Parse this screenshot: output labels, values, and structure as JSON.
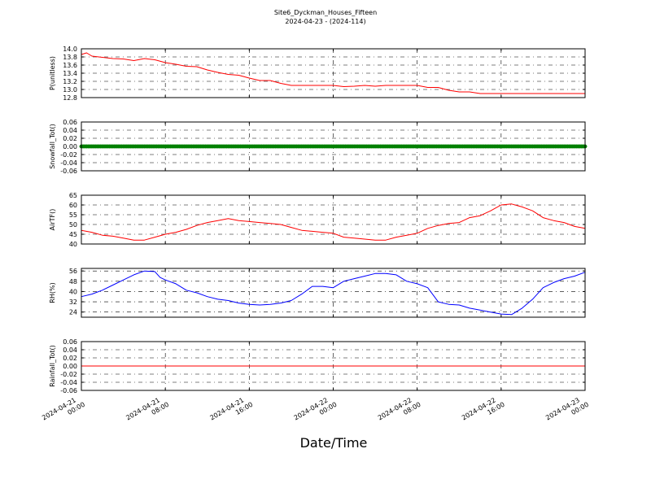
{
  "figure": {
    "title_line1": "Site6_Dyckman_Houses_Fifteen",
    "title_line2": "2024-04-23 - (2024-114)",
    "xlabel": "Date/Time",
    "xticks": [
      {
        "x": "2024-04-21 00:00",
        "l1": "2024-04-21",
        "l2": "00:00"
      },
      {
        "x": "2024-04-21 08:00",
        "l1": "2024-04-21",
        "l2": "08:00"
      },
      {
        "x": "2024-04-21 16:00",
        "l1": "2024-04-21",
        "l2": "16:00"
      },
      {
        "x": "2024-04-22 00:00",
        "l1": "2024-04-22",
        "l2": "00:00"
      },
      {
        "x": "2024-04-22 08:00",
        "l1": "2024-04-22",
        "l2": "08:00"
      },
      {
        "x": "2024-04-22 16:00",
        "l1": "2024-04-22",
        "l2": "16:00"
      },
      {
        "x": "2024-04-23 00:00",
        "l1": "2024-04-23",
        "l2": "00:00"
      }
    ]
  },
  "chart_data": [
    {
      "type": "line",
      "ylabel": "P(unitless)",
      "ylim": [
        12.8,
        14.0
      ],
      "yticks": [
        "12.8",
        "13.0",
        "13.2",
        "13.4",
        "13.6",
        "13.8",
        "14.0"
      ],
      "xlim": [
        "2024-04-21 00:00",
        "2024-04-23 00:00"
      ],
      "grid": true,
      "series": [
        {
          "color": "#ff0000",
          "points": [
            [
              "2024-04-21 00:00",
              13.86
            ],
            [
              "2024-04-21 00:30",
              13.9
            ],
            [
              "2024-04-21 01:00",
              13.82
            ],
            [
              "2024-04-21 02:00",
              13.79
            ],
            [
              "2024-04-21 03:00",
              13.76
            ],
            [
              "2024-04-21 04:00",
              13.75
            ],
            [
              "2024-04-21 05:00",
              13.71
            ],
            [
              "2024-04-21 06:00",
              13.76
            ],
            [
              "2024-04-21 07:00",
              13.73
            ],
            [
              "2024-04-21 08:00",
              13.66
            ],
            [
              "2024-04-21 09:00",
              13.62
            ],
            [
              "2024-04-21 10:00",
              13.57
            ],
            [
              "2024-04-21 11:00",
              13.56
            ],
            [
              "2024-04-21 12:00",
              13.48
            ],
            [
              "2024-04-21 13:00",
              13.42
            ],
            [
              "2024-04-21 14:00",
              13.37
            ],
            [
              "2024-04-21 15:00",
              13.35
            ],
            [
              "2024-04-21 16:00",
              13.28
            ],
            [
              "2024-04-21 17:00",
              13.22
            ],
            [
              "2024-04-21 18:00",
              13.22
            ],
            [
              "2024-04-21 19:00",
              13.15
            ],
            [
              "2024-04-21 20:00",
              13.1
            ],
            [
              "2024-04-21 22:00",
              13.1
            ],
            [
              "2024-04-22 00:00",
              13.1
            ],
            [
              "2024-04-22 01:00",
              13.07
            ],
            [
              "2024-04-22 02:00",
              13.08
            ],
            [
              "2024-04-22 03:00",
              13.1
            ],
            [
              "2024-04-22 04:00",
              13.08
            ],
            [
              "2024-04-22 05:00",
              13.1
            ],
            [
              "2024-04-22 06:00",
              13.1
            ],
            [
              "2024-04-22 08:00",
              13.1
            ],
            [
              "2024-04-22 09:00",
              13.05
            ],
            [
              "2024-04-22 10:00",
              13.05
            ],
            [
              "2024-04-22 11:00",
              12.98
            ],
            [
              "2024-04-22 12:00",
              12.94
            ],
            [
              "2024-04-22 13:00",
              12.94
            ],
            [
              "2024-04-22 14:00",
              12.9
            ],
            [
              "2024-04-22 18:00",
              12.9
            ],
            [
              "2024-04-22 22:00",
              12.9
            ],
            [
              "2024-04-23 00:00",
              12.9
            ]
          ]
        }
      ]
    },
    {
      "type": "scatter",
      "ylabel": "Snowfall_Tot()",
      "ylim": [
        -0.06,
        0.06
      ],
      "yticks": [
        "-0.06",
        "-0.04",
        "-0.02",
        "0.00",
        "0.02",
        "0.04",
        "0.06"
      ],
      "xlim": [
        "2024-04-21 00:00",
        "2024-04-23 00:00"
      ],
      "grid": true,
      "series": [
        {
          "color": "#008000",
          "constant": 0.0,
          "interval_minutes": 10,
          "points": [
            [
              "2024-04-21 00:00",
              0.0
            ],
            [
              "2024-04-23 00:00",
              0.0
            ]
          ]
        }
      ]
    },
    {
      "type": "line",
      "ylabel": "AirTF()",
      "ylim": [
        40,
        65
      ],
      "yticks": [
        "40",
        "45",
        "50",
        "55",
        "60",
        "65"
      ],
      "xlim": [
        "2024-04-21 00:00",
        "2024-04-23 00:00"
      ],
      "grid": true,
      "series": [
        {
          "color": "#ff0000",
          "points": [
            [
              "2024-04-21 00:00",
              47.0
            ],
            [
              "2024-04-21 01:00",
              46.0
            ],
            [
              "2024-04-21 02:00",
              44.5
            ],
            [
              "2024-04-21 03:00",
              44.0
            ],
            [
              "2024-04-21 04:00",
              43.0
            ],
            [
              "2024-04-21 05:00",
              42.0
            ],
            [
              "2024-04-21 06:00",
              42.0
            ],
            [
              "2024-04-21 07:00",
              43.5
            ],
            [
              "2024-04-21 08:00",
              45.0
            ],
            [
              "2024-04-21 09:00",
              46.0
            ],
            [
              "2024-04-21 10:00",
              47.5
            ],
            [
              "2024-04-21 11:00",
              49.5
            ],
            [
              "2024-04-21 12:00",
              51.0
            ],
            [
              "2024-04-21 13:00",
              52.0
            ],
            [
              "2024-04-21 14:00",
              53.0
            ],
            [
              "2024-04-21 15:00",
              52.0
            ],
            [
              "2024-04-21 16:00",
              51.5
            ],
            [
              "2024-04-21 17:00",
              51.0
            ],
            [
              "2024-04-21 18:00",
              50.5
            ],
            [
              "2024-04-21 19:00",
              50.0
            ],
            [
              "2024-04-21 20:00",
              48.5
            ],
            [
              "2024-04-21 21:00",
              47.0
            ],
            [
              "2024-04-21 22:00",
              46.5
            ],
            [
              "2024-04-21 23:00",
              46.0
            ],
            [
              "2024-04-22 00:00",
              45.5
            ],
            [
              "2024-04-22 01:00",
              43.5
            ],
            [
              "2024-04-22 02:00",
              43.0
            ],
            [
              "2024-04-22 03:00",
              42.5
            ],
            [
              "2024-04-22 04:00",
              42.0
            ],
            [
              "2024-04-22 05:00",
              42.0
            ],
            [
              "2024-04-22 06:00",
              43.5
            ],
            [
              "2024-04-22 07:00",
              44.5
            ],
            [
              "2024-04-22 08:00",
              45.5
            ],
            [
              "2024-04-22 09:00",
              48.0
            ],
            [
              "2024-04-22 10:00",
              49.5
            ],
            [
              "2024-04-22 11:00",
              50.5
            ],
            [
              "2024-04-22 12:00",
              51.0
            ],
            [
              "2024-04-22 13:00",
              53.5
            ],
            [
              "2024-04-22 14:00",
              54.5
            ],
            [
              "2024-04-22 15:00",
              57.0
            ],
            [
              "2024-04-22 16:00",
              60.0
            ],
            [
              "2024-04-22 17:00",
              60.5
            ],
            [
              "2024-04-22 18:00",
              59.0
            ],
            [
              "2024-04-22 19:00",
              57.0
            ],
            [
              "2024-04-22 20:00",
              53.5
            ],
            [
              "2024-04-22 21:00",
              52.0
            ],
            [
              "2024-04-22 22:00",
              51.0
            ],
            [
              "2024-04-22 23:00",
              49.0
            ],
            [
              "2024-04-23 00:00",
              48.0
            ]
          ]
        }
      ]
    },
    {
      "type": "line",
      "ylabel": "RH(%)",
      "ylim": [
        20,
        58
      ],
      "yticks": [
        "24",
        "32",
        "40",
        "48",
        "56"
      ],
      "xlim": [
        "2024-04-21 00:00",
        "2024-04-23 00:00"
      ],
      "grid": true,
      "series": [
        {
          "color": "#0000ff",
          "points": [
            [
              "2024-04-21 00:00",
              36.0
            ],
            [
              "2024-04-21 01:00",
              38.0
            ],
            [
              "2024-04-21 02:00",
              41.0
            ],
            [
              "2024-04-21 03:00",
              45.0
            ],
            [
              "2024-04-21 04:00",
              49.0
            ],
            [
              "2024-04-21 05:00",
              53.0
            ],
            [
              "2024-04-21 06:00",
              56.0
            ],
            [
              "2024-04-21 07:00",
              55.5
            ],
            [
              "2024-04-21 07:30",
              51.0
            ],
            [
              "2024-04-21 08:00",
              49.0
            ],
            [
              "2024-04-21 09:00",
              46.0
            ],
            [
              "2024-04-21 10:00",
              41.0
            ],
            [
              "2024-04-21 11:00",
              39.0
            ],
            [
              "2024-04-21 12:00",
              36.0
            ],
            [
              "2024-04-21 13:00",
              34.0
            ],
            [
              "2024-04-21 14:00",
              33.0
            ],
            [
              "2024-04-21 15:00",
              31.0
            ],
            [
              "2024-04-21 16:00",
              30.0
            ],
            [
              "2024-04-21 17:00",
              29.5
            ],
            [
              "2024-04-21 18:00",
              30.0
            ],
            [
              "2024-04-21 19:00",
              31.0
            ],
            [
              "2024-04-21 20:00",
              33.0
            ],
            [
              "2024-04-21 21:00",
              38.0
            ],
            [
              "2024-04-21 22:00",
              44.0
            ],
            [
              "2024-04-21 23:00",
              44.0
            ],
            [
              "2024-04-22 00:00",
              43.0
            ],
            [
              "2024-04-22 01:00",
              48.0
            ],
            [
              "2024-04-22 02:00",
              50.0
            ],
            [
              "2024-04-22 03:00",
              52.0
            ],
            [
              "2024-04-22 04:00",
              54.0
            ],
            [
              "2024-04-22 05:00",
              54.0
            ],
            [
              "2024-04-22 06:00",
              53.0
            ],
            [
              "2024-04-22 07:00",
              48.0
            ],
            [
              "2024-04-22 08:00",
              46.0
            ],
            [
              "2024-04-22 09:00",
              43.0
            ],
            [
              "2024-04-22 10:00",
              32.0
            ],
            [
              "2024-04-22 11:00",
              30.0
            ],
            [
              "2024-04-22 12:00",
              29.5
            ],
            [
              "2024-04-22 13:00",
              27.0
            ],
            [
              "2024-04-22 14:00",
              25.5
            ],
            [
              "2024-04-22 15:00",
              24.0
            ],
            [
              "2024-04-22 16:00",
              22.5
            ],
            [
              "2024-04-22 17:00",
              22.0
            ],
            [
              "2024-04-22 18:00",
              27.0
            ],
            [
              "2024-04-22 19:00",
              34.0
            ],
            [
              "2024-04-22 20:00",
              43.0
            ],
            [
              "2024-04-22 21:00",
              47.0
            ],
            [
              "2024-04-22 22:00",
              50.0
            ],
            [
              "2024-04-22 23:00",
              52.0
            ],
            [
              "2024-04-23 00:00",
              55.0
            ]
          ]
        }
      ]
    },
    {
      "type": "line",
      "ylabel": "Rainfall_Tot()",
      "ylim": [
        -0.06,
        0.06
      ],
      "yticks": [
        "-0.06",
        "-0.04",
        "-0.02",
        "0.00",
        "0.02",
        "0.04",
        "0.06"
      ],
      "xlim": [
        "2024-04-21 00:00",
        "2024-04-23 00:00"
      ],
      "grid": true,
      "series": [
        {
          "color": "#ff0000",
          "points": [
            [
              "2024-04-21 00:00",
              0.0
            ],
            [
              "2024-04-23 00:00",
              0.0
            ]
          ]
        }
      ]
    }
  ]
}
